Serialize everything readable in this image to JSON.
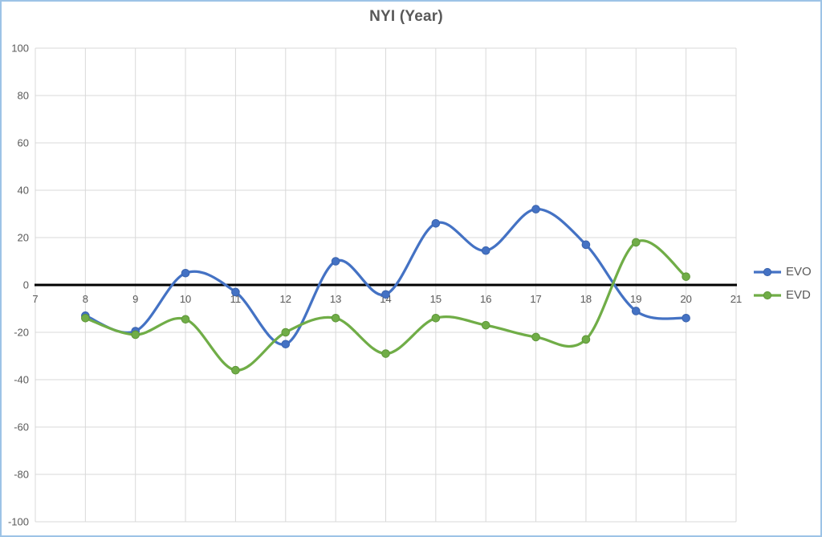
{
  "frame": {
    "border_color": "#9dc3e6",
    "background": "#ffffff"
  },
  "chart_data": {
    "type": "line",
    "title": "NYI (Year)",
    "smooth_lines": true,
    "grid": true,
    "x": [
      8,
      9,
      10,
      11,
      12,
      13,
      14,
      15,
      16,
      17,
      18,
      19,
      20
    ],
    "series": [
      {
        "name": "EVO",
        "color": "#4472c4",
        "marker_edge": "#3a63ad",
        "values": [
          -13,
          -19.5,
          5,
          -3,
          -25,
          10,
          -4,
          26,
          14.5,
          32,
          17,
          -11,
          -14
        ]
      },
      {
        "name": "EVD",
        "color": "#70ad47",
        "marker_edge": "#5e9639",
        "values": [
          -14,
          -21,
          -14.5,
          -36,
          -20,
          -14,
          -29,
          -14,
          -17,
          -22,
          -23,
          18,
          3.5
        ]
      }
    ],
    "x_axis": {
      "min": 7,
      "max": 21,
      "step": 1,
      "tick_labels": [
        "7",
        "8",
        "9",
        "10",
        "11",
        "12",
        "13",
        "14",
        "15",
        "16",
        "17",
        "18",
        "19",
        "20",
        "21"
      ]
    },
    "y_axis": {
      "min": -100,
      "max": 100,
      "step": 20,
      "tick_labels": [
        "100",
        "80",
        "60",
        "40",
        "20",
        "0",
        "-20",
        "-40",
        "-60",
        "-80",
        "-100"
      ]
    },
    "legend": {
      "position": "right",
      "entries": [
        "EVO",
        "EVD"
      ]
    },
    "colors": {
      "gridline": "#d9d9d9",
      "zero_line": "#000000",
      "text": "#595959",
      "title": "#595959"
    }
  }
}
